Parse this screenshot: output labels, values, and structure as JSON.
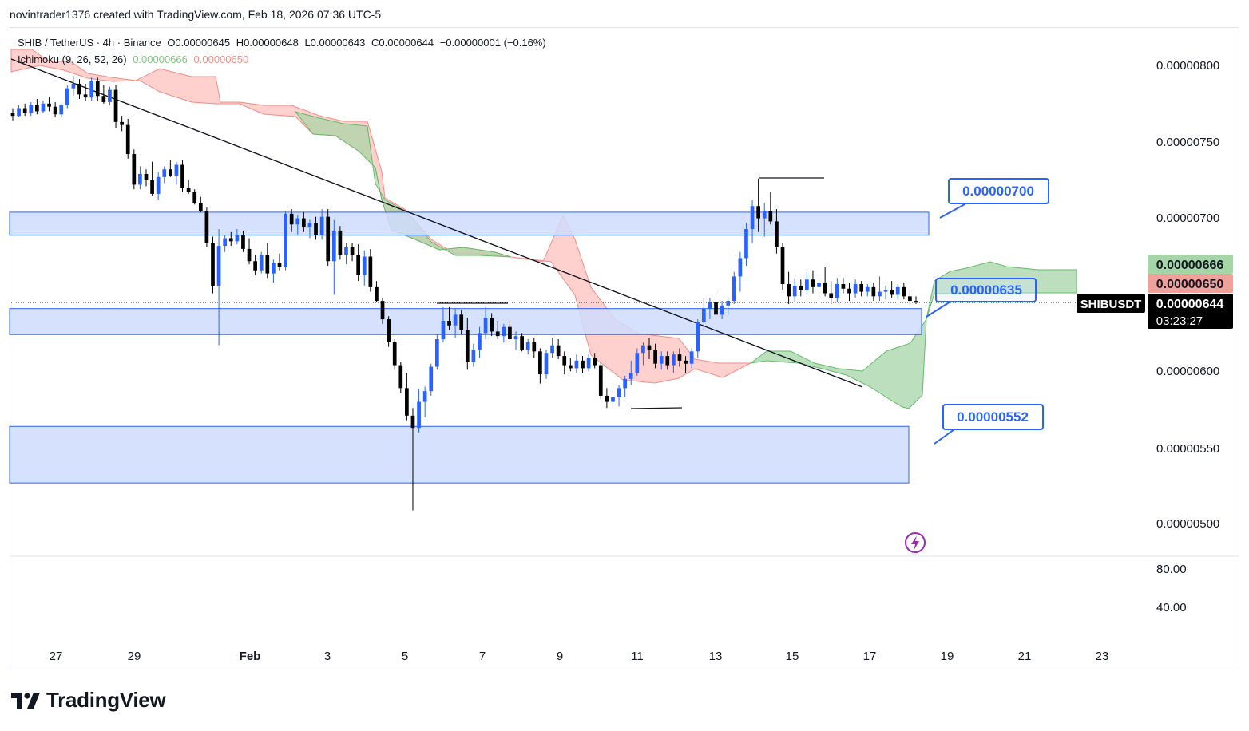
{
  "header": {
    "credit": "novintrader1376 created with TradingView.com, Feb 18, 2026 07:36 UTC-5"
  },
  "legend": {
    "symbol": "SHIB / TetherUS · 4h · Binance",
    "open": "O0.00000645",
    "high": "H0.00000648",
    "low": "L0.00000643",
    "close": "C0.00000644",
    "change": "−0.00000001 (−0.16%)",
    "indicator": "Ichimoku (9, 26, 52, 26)",
    "ichimoku_val1": "0.00000666",
    "ichimoku_val2": "0.00000650"
  },
  "colors": {
    "up": "#2962ff",
    "down": "#000000",
    "cloud_bull": "#a5d6a7",
    "cloud_bear": "#ffb3ae",
    "zone_fill": "#cfdcfd",
    "zone_border": "#2962ff",
    "callout_border": "#2962ff",
    "callout_text": "#2962ff",
    "label_green": "#a5d6a7",
    "label_red": "#f0a19c",
    "label_dark": "#000000"
  },
  "price_axis": {
    "ticks": [
      "0.00000800",
      "0.00000750",
      "0.00000700",
      "0.00000650",
      "0.00000600",
      "0.00000550",
      "0.00000500"
    ],
    "symbol_tag": "SHIBUSDT",
    "last_price": "0.00000644",
    "countdown": "03:23:27",
    "ichimoku_a": "0.00000666",
    "ichimoku_b": "0.00000650"
  },
  "oscillator_axis": {
    "ticks": [
      "80.00",
      "40.00"
    ]
  },
  "time_axis": {
    "labels": [
      "27",
      "29",
      "Feb",
      "3",
      "5",
      "7",
      "9",
      "11",
      "13",
      "15",
      "17",
      "19",
      "21",
      "23"
    ]
  },
  "annotations": {
    "callout_high": "0.00000700",
    "callout_mid": "0.00000635",
    "callout_low": "0.00000552"
  },
  "brand": {
    "name": "TradingView"
  },
  "chart_data": {
    "type": "candlestick",
    "symbol": "SHIBUSDT",
    "timeframe": "4h",
    "ylim": [
      4.9e-06,
      8.3e-06
    ],
    "support_resistance_zones": [
      {
        "from": 6.88e-06,
        "to": 7.03e-06
      },
      {
        "from": 6.23e-06,
        "to": 6.4e-06
      },
      {
        "from": 5.26e-06,
        "to": 5.63e-06
      }
    ],
    "levels": [
      7e-06,
      6.35e-06,
      5.52e-06
    ],
    "last_price": 6.44e-06,
    "ichimoku": {
      "span_a": 6.66e-06,
      "span_b": 6.5e-06
    },
    "candles": [
      [
        7.68e-06,
        7.71e-06,
        7.63e-06,
        7.66e-06
      ],
      [
        7.66e-06,
        7.73e-06,
        7.65e-06,
        7.71e-06
      ],
      [
        7.71e-06,
        7.74e-06,
        7.66e-06,
        7.68e-06
      ],
      [
        7.68e-06,
        7.75e-06,
        7.66e-06,
        7.73e-06
      ],
      [
        7.73e-06,
        7.77e-06,
        7.67e-06,
        7.69e-06
      ],
      [
        7.69e-06,
        7.76e-06,
        7.68e-06,
        7.74e-06
      ],
      [
        7.74e-06,
        7.78e-06,
        7.69e-06,
        7.72e-06
      ],
      [
        7.72e-06,
        7.75e-06,
        7.65e-06,
        7.67e-06
      ],
      [
        7.67e-06,
        7.74e-06,
        7.65e-06,
        7.73e-06
      ],
      [
        7.73e-06,
        7.86e-06,
        7.71e-06,
        7.84e-06
      ],
      [
        7.84e-06,
        7.92e-06,
        7.79e-06,
        7.87e-06
      ],
      [
        7.87e-06,
        7.9e-06,
        7.77e-06,
        7.8e-06
      ],
      [
        7.8e-06,
        7.87e-06,
        7.76e-06,
        7.78e-06
      ],
      [
        7.78e-06,
        7.91e-06,
        7.76e-06,
        7.89e-06
      ],
      [
        7.89e-06,
        7.91e-06,
        7.76e-06,
        7.79e-06
      ],
      [
        7.79e-06,
        7.86e-06,
        7.74e-06,
        7.75e-06
      ],
      [
        7.75e-06,
        7.85e-06,
        7.73e-06,
        7.83e-06
      ],
      [
        7.83e-06,
        7.86e-06,
        7.58e-06,
        7.62e-06
      ],
      [
        7.62e-06,
        7.66e-06,
        7.56e-06,
        7.6e-06
      ],
      [
        7.6e-06,
        7.64e-06,
        7.38e-06,
        7.41e-06
      ],
      [
        7.41e-06,
        7.44e-06,
        7.18e-06,
        7.21e-06
      ],
      [
        7.21e-06,
        7.33e-06,
        7.18e-06,
        7.28e-06
      ],
      [
        7.28e-06,
        7.31e-06,
        7.2e-06,
        7.24e-06
      ],
      [
        7.24e-06,
        7.36e-06,
        7.14e-06,
        7.15e-06
      ],
      [
        7.15e-06,
        7.29e-06,
        7.11e-06,
        7.26e-06
      ],
      [
        7.26e-06,
        7.33e-06,
        7.22e-06,
        7.31e-06
      ],
      [
        7.31e-06,
        7.37e-06,
        7.26e-06,
        7.27e-06
      ],
      [
        7.27e-06,
        7.36e-06,
        7.21e-06,
        7.34e-06
      ],
      [
        7.34e-06,
        7.37e-06,
        7.16e-06,
        7.19e-06
      ],
      [
        7.19e-06,
        7.24e-06,
        7.15e-06,
        7.16e-06
      ],
      [
        7.16e-06,
        7.18e-06,
        7.08e-06,
        7.09e-06
      ],
      [
        7.09e-06,
        7.13e-06,
        7.03e-06,
        7.04e-06
      ],
      [
        7.04e-06,
        7.06e-06,
        6.8e-06,
        6.83e-06
      ],
      [
        6.83e-06,
        6.87e-06,
        6.5e-06,
        6.55e-06
      ],
      [
        6.55e-06,
        6.92e-06,
        6.16e-06,
        6.81e-06
      ],
      [
        6.81e-06,
        6.88e-06,
        6.77e-06,
        6.86e-06
      ],
      [
        6.86e-06,
        6.9e-06,
        6.81e-06,
        6.84e-06
      ],
      [
        6.84e-06,
        6.92e-06,
        6.82e-06,
        6.88e-06
      ],
      [
        6.88e-06,
        6.91e-06,
        6.77e-06,
        6.79e-06
      ],
      [
        6.79e-06,
        6.86e-06,
        6.69e-06,
        6.71e-06
      ],
      [
        6.71e-06,
        6.75e-06,
        6.62e-06,
        6.65e-06
      ],
      [
        6.65e-06,
        6.77e-06,
        6.63e-06,
        6.75e-06
      ],
      [
        6.75e-06,
        6.83e-06,
        6.6e-06,
        6.63e-06
      ],
      [
        6.63e-06,
        6.72e-06,
        6.57e-06,
        6.7e-06
      ],
      [
        6.7e-06,
        6.76e-06,
        6.65e-06,
        6.67e-06
      ],
      [
        6.67e-06,
        7.04e-06,
        6.65e-06,
        7.02e-06
      ],
      [
        7.02e-06,
        7.05e-06,
        6.9e-06,
        6.95e-06
      ],
      [
        6.95e-06,
        7.01e-06,
        6.88e-06,
        6.99e-06
      ],
      [
        6.99e-06,
        7.03e-06,
        6.9e-06,
        6.93e-06
      ],
      [
        6.93e-06,
        6.98e-06,
        6.86e-06,
        6.96e-06
      ],
      [
        6.96e-06,
        7e-06,
        6.85e-06,
        6.88e-06
      ],
      [
        6.88e-06,
        7.05e-06,
        6.85e-06,
        7e-06
      ],
      [
        7e-06,
        7.05e-06,
        6.68e-06,
        6.71e-06
      ],
      [
        6.71e-06,
        6.98e-06,
        6.49e-06,
        6.91e-06
      ],
      [
        6.91e-06,
        6.94e-06,
        6.72e-06,
        6.75e-06
      ],
      [
        6.75e-06,
        6.83e-06,
        6.69e-06,
        6.8e-06
      ],
      [
        6.8e-06,
        6.83e-06,
        6.71e-06,
        6.75e-06
      ],
      [
        6.75e-06,
        6.82e-06,
        6.58e-06,
        6.62e-06
      ],
      [
        6.62e-06,
        6.78e-06,
        6.55e-06,
        6.74e-06
      ],
      [
        6.74e-06,
        6.79e-06,
        6.51e-06,
        6.54e-06
      ],
      [
        6.54e-06,
        6.58e-06,
        6.44e-06,
        6.45e-06
      ],
      [
        6.45e-06,
        6.47e-06,
        6.3e-06,
        6.33e-06
      ],
      [
        6.33e-06,
        6.35e-06,
        6.15e-06,
        6.18e-06
      ],
      [
        6.18e-06,
        6.2e-06,
        6e-06,
        6.03e-06
      ],
      [
        6.03e-06,
        6.05e-06,
        5.85e-06,
        5.88e-06
      ],
      [
        5.88e-06,
        5.98e-06,
        5.67e-06,
        5.7e-06
      ],
      [
        5.7e-06,
        5.75e-06,
        5.08e-06,
        5.62e-06
      ],
      [
        5.62e-06,
        5.87e-06,
        5.59e-06,
        5.79e-06
      ],
      [
        5.79e-06,
        5.89e-06,
        5.69e-06,
        5.86e-06
      ],
      [
        5.86e-06,
        6.04e-06,
        5.83e-06,
        6.02e-06
      ],
      [
        6.02e-06,
        6.23e-06,
        6e-06,
        6.2e-06
      ],
      [
        6.2e-06,
        6.41e-06,
        6.18e-06,
        6.32e-06
      ],
      [
        6.32e-06,
        6.41e-06,
        6.26e-06,
        6.29e-06
      ],
      [
        6.29e-06,
        6.4e-06,
        6.21e-06,
        6.36e-06
      ],
      [
        6.36e-06,
        6.39e-06,
        6.23e-06,
        6.26e-06
      ],
      [
        6.26e-06,
        6.34e-06,
        6e-06,
        6.05e-06
      ],
      [
        6.05e-06,
        6.17e-06,
        6.02e-06,
        6.13e-06
      ],
      [
        6.13e-06,
        6.28e-06,
        6.08e-06,
        6.24e-06
      ],
      [
        6.24e-06,
        6.41e-06,
        6.2e-06,
        6.34e-06
      ],
      [
        6.34e-06,
        6.37e-06,
        6.22e-06,
        6.25e-06
      ],
      [
        6.25e-06,
        6.32e-06,
        6.2e-06,
        6.22e-06
      ],
      [
        6.22e-06,
        6.3e-06,
        6.18e-06,
        6.28e-06
      ],
      [
        6.28e-06,
        6.32e-06,
        6.18e-06,
        6.2e-06
      ],
      [
        6.2e-06,
        6.25e-06,
        6.13e-06,
        6.22e-06
      ],
      [
        6.22e-06,
        6.24e-06,
        6.12e-06,
        6.13e-06
      ],
      [
        6.13e-06,
        6.2e-06,
        6.1e-06,
        6.18e-06
      ],
      [
        6.18e-06,
        6.21e-06,
        6.08e-06,
        6.12e-06
      ],
      [
        6.12e-06,
        6.14e-06,
        5.91e-06,
        5.97e-06
      ],
      [
        5.97e-06,
        6.13e-06,
        5.94e-06,
        6.11e-06
      ],
      [
        6.11e-06,
        6.21e-06,
        6.08e-06,
        6.16e-06
      ],
      [
        6.16e-06,
        6.2e-06,
        6.07e-06,
        6.09e-06
      ],
      [
        6.09e-06,
        6.12e-06,
        5.97e-06,
        6.03e-06
      ],
      [
        6.03e-06,
        6.08e-06,
        5.99e-06,
        6.01e-06
      ],
      [
        6.01e-06,
        6.1e-06,
        5.98e-06,
        6.06e-06
      ],
      [
        6.06e-06,
        6.09e-06,
        5.98e-06,
        6.01e-06
      ],
      [
        6.01e-06,
        6.1e-06,
        5.99e-06,
        6.08e-06
      ],
      [
        6.08e-06,
        6.11e-06,
        6.01e-06,
        6.03e-06
      ],
      [
        6.03e-06,
        6.05e-06,
        5.81e-06,
        5.83e-06
      ],
      [
        5.83e-06,
        5.88e-06,
        5.75e-06,
        5.79e-06
      ],
      [
        5.79e-06,
        5.86e-06,
        5.75e-06,
        5.82e-06
      ],
      [
        5.82e-06,
        5.9e-06,
        5.76e-06,
        5.88e-06
      ],
      [
        5.88e-06,
        5.96e-06,
        5.82e-06,
        5.94e-06
      ],
      [
        5.94e-06,
        6.06e-06,
        5.9e-06,
        5.98e-06
      ],
      [
        5.98e-06,
        6.14e-06,
        5.96e-06,
        6.11e-06
      ],
      [
        6.11e-06,
        6.18e-06,
        6.03e-06,
        6.16e-06
      ],
      [
        6.16e-06,
        6.21e-06,
        6.07e-06,
        6.13e-06
      ],
      [
        6.13e-06,
        6.17e-06,
        6.01e-06,
        6.04e-06
      ],
      [
        6.04e-06,
        6.12e-06,
        6e-06,
        6.09e-06
      ],
      [
        6.09e-06,
        6.12e-06,
        6e-06,
        6.03e-06
      ],
      [
        6.03e-06,
        6.12e-06,
        5.98e-06,
        6.1e-06
      ],
      [
        6.1e-06,
        6.14e-06,
        6.02e-06,
        6.06e-06
      ],
      [
        6.06e-06,
        6.09e-06,
        5.98e-06,
        6.04e-06
      ],
      [
        6.04e-06,
        6.14e-06,
        6.01e-06,
        6.12e-06
      ],
      [
        6.12e-06,
        6.33e-06,
        6.08e-06,
        6.31e-06
      ],
      [
        6.31e-06,
        6.47e-06,
        6.26e-06,
        6.4e-06
      ],
      [
        6.4e-06,
        6.47e-06,
        6.33e-06,
        6.44e-06
      ],
      [
        6.44e-06,
        6.5e-06,
        6.34e-06,
        6.36e-06
      ],
      [
        6.36e-06,
        6.45e-06,
        6.33e-06,
        6.42e-06
      ],
      [
        6.42e-06,
        6.47e-06,
        6.36e-06,
        6.45e-06
      ],
      [
        6.45e-06,
        6.64e-06,
        6.43e-06,
        6.61e-06
      ],
      [
        6.61e-06,
        6.77e-06,
        6.51e-06,
        6.73e-06
      ],
      [
        6.73e-06,
        6.96e-06,
        6.68e-06,
        6.92e-06
      ],
      [
        6.92e-06,
        7.11e-06,
        6.83e-06,
        7.07e-06
      ],
      [
        7.07e-06,
        7.25e-06,
        6.9e-06,
        6.99e-06
      ],
      [
        6.99e-06,
        7.09e-06,
        6.87e-06,
        7.04e-06
      ],
      [
        7.04e-06,
        7.16e-06,
        6.95e-06,
        6.97e-06
      ],
      [
        6.97e-06,
        7.05e-06,
        6.76e-06,
        6.8e-06
      ],
      [
        6.8e-06,
        6.83e-06,
        6.52e-06,
        6.56e-06
      ],
      [
        6.56e-06,
        6.64e-06,
        6.43e-06,
        6.48e-06
      ],
      [
        6.48e-06,
        6.6e-06,
        6.44e-06,
        6.55e-06
      ],
      [
        6.55e-06,
        6.59e-06,
        6.48e-06,
        6.52e-06
      ],
      [
        6.52e-06,
        6.64e-06,
        6.49e-06,
        6.59e-06
      ],
      [
        6.59e-06,
        6.65e-06,
        6.5e-06,
        6.54e-06
      ],
      [
        6.54e-06,
        6.6e-06,
        6.46e-06,
        6.57e-06
      ],
      [
        6.57e-06,
        6.67e-06,
        6.48e-06,
        6.5e-06
      ],
      [
        6.5e-06,
        6.58e-06,
        6.43e-06,
        6.47e-06
      ],
      [
        6.47e-06,
        6.6e-06,
        6.44e-06,
        6.56e-06
      ],
      [
        6.56e-06,
        6.6e-06,
        6.5e-06,
        6.53e-06
      ],
      [
        6.53e-06,
        6.57e-06,
        6.45e-06,
        6.5e-06
      ],
      [
        6.5e-06,
        6.59e-06,
        6.47e-06,
        6.56e-06
      ],
      [
        6.56e-06,
        6.58e-06,
        6.48e-06,
        6.51e-06
      ],
      [
        6.51e-06,
        6.56e-06,
        6.48e-06,
        6.54e-06
      ],
      [
        6.54e-06,
        6.57e-06,
        6.45e-06,
        6.48e-06
      ],
      [
        6.48e-06,
        6.61e-06,
        6.45e-06,
        6.51e-06
      ],
      [
        6.51e-06,
        6.55e-06,
        6.46e-06,
        6.52e-06
      ],
      [
        6.52e-06,
        6.58e-06,
        6.47e-06,
        6.49e-06
      ],
      [
        6.49e-06,
        6.56e-06,
        6.46e-06,
        6.54e-06
      ],
      [
        6.54e-06,
        6.57e-06,
        6.46e-06,
        6.48e-06
      ],
      [
        6.48e-06,
        6.52e-06,
        6.42e-06,
        6.45e-06
      ],
      [
        6.45e-06,
        6.48e-06,
        6.43e-06,
        6.44e-06
      ]
    ]
  }
}
